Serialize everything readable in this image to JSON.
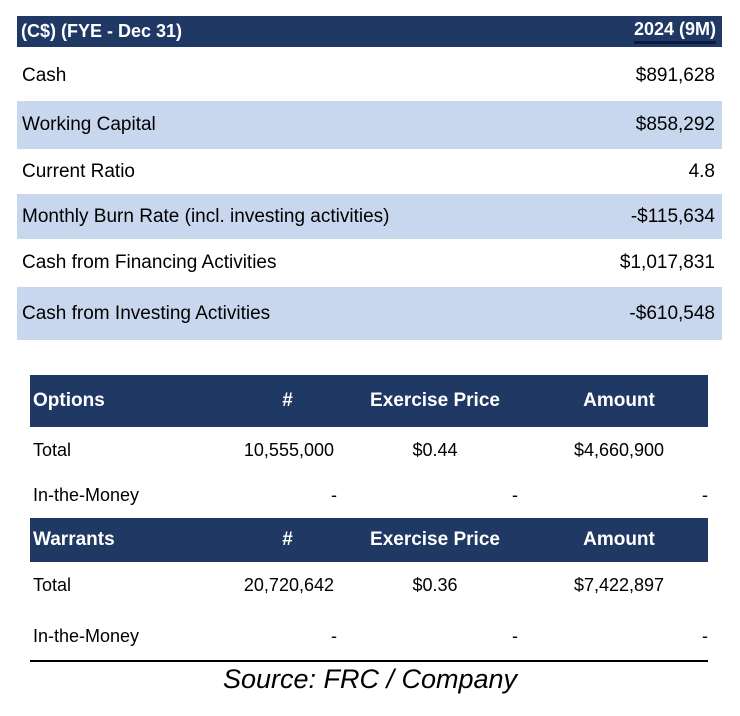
{
  "liquidity": {
    "header_left": "(C$) (FYE - Dec 31)",
    "header_right": "2024 (9M)",
    "rows": [
      {
        "label": "Cash",
        "value": "$891,628"
      },
      {
        "label": "Working Capital",
        "value": "$858,292"
      },
      {
        "label": "Current Ratio",
        "value": "4.8"
      },
      {
        "label": "Monthly Burn Rate (incl. investing activities)",
        "value": "-$115,634"
      },
      {
        "label": "Cash from Financing Activities",
        "value": "$1,017,831"
      },
      {
        "label": "Cash from Investing Activities",
        "value": "-$610,548"
      }
    ]
  },
  "options": {
    "headers": [
      "Options",
      "#",
      "Exercise Price",
      "Amount"
    ],
    "total": {
      "label": "Total",
      "count": "10,555,000",
      "price": "$0.44",
      "amount": "$4,660,900"
    },
    "itm": {
      "label": "In-the-Money",
      "count": "-",
      "price": "-",
      "amount": "-"
    }
  },
  "warrants": {
    "headers": [
      "Warrants",
      "#",
      "Exercise Price",
      "Amount"
    ],
    "total": {
      "label": "Total",
      "count": "20,720,642",
      "price": "$0.36",
      "amount": "$7,422,897"
    },
    "itm": {
      "label": "In-the-Money",
      "count": "-",
      "price": "-",
      "amount": "-"
    }
  },
  "source": "Source: FRC / Company",
  "colors": {
    "header_bg": "#1f3864",
    "row_shade": "#c9d7ee"
  }
}
